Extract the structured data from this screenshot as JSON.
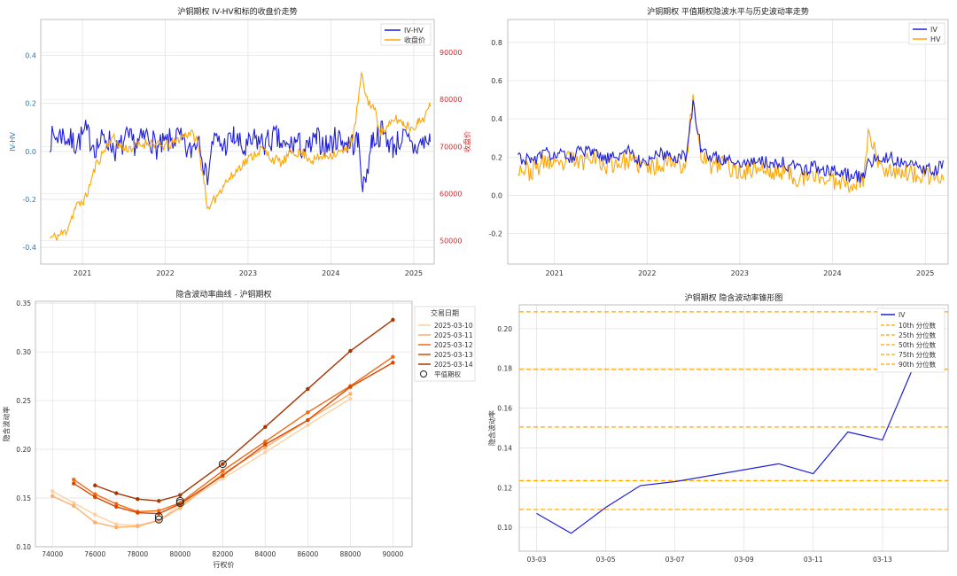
{
  "chart_data": [
    {
      "type": "line",
      "title": "沪铜期权 IV-HV和标的收盘价走势",
      "ylabel": "IV-HV",
      "ylabel_right": "收盘价",
      "xlim": [
        "2020-07-01",
        "2025-04-01"
      ],
      "ylim": [
        -0.47,
        0.55
      ],
      "ylim_right": [
        45000,
        97000
      ],
      "yticks": [
        -0.4,
        -0.2,
        0.0,
        0.2,
        0.4
      ],
      "yticks_right": [
        50000,
        60000,
        70000,
        80000,
        90000
      ],
      "xticks": [
        "2021",
        "2022",
        "2023",
        "2024",
        "2025"
      ],
      "legend": "top-right",
      "grid": true,
      "colors": {
        "iv_hv": "#1f1fdc",
        "close": "#ffa500",
        "right_axis": "#d62728"
      },
      "series": [
        {
          "name": "IV-HV",
          "axis": "left",
          "x": [
            "2020-08-10",
            "2020-10-01",
            "2020-12-01",
            "2021-01-15",
            "2021-03-01",
            "2021-04-15",
            "2021-06-01",
            "2021-07-15",
            "2021-09-01",
            "2021-10-15",
            "2021-12-01",
            "2022-01-15",
            "2022-03-01",
            "2022-04-15",
            "2022-06-01",
            "2022-07-01",
            "2022-08-01",
            "2022-09-15",
            "2022-11-01",
            "2022-12-15",
            "2023-02-01",
            "2023-03-15",
            "2023-05-01",
            "2023-06-15",
            "2023-08-01",
            "2023-09-15",
            "2023-11-01",
            "2023-12-15",
            "2024-02-01",
            "2024-03-15",
            "2024-05-01",
            "2024-05-25",
            "2024-07-01",
            "2024-08-15",
            "2024-10-01",
            "2024-11-15",
            "2025-01-01",
            "2025-02-15",
            "2025-03-14"
          ],
          "values": [
            0.05,
            0.07,
            0.03,
            0.08,
            0.02,
            0.06,
            0.0,
            0.05,
            0.03,
            0.07,
            0.01,
            0.04,
            0.06,
            -0.01,
            0.07,
            -0.12,
            0.05,
            0.02,
            0.06,
            0.0,
            0.05,
            0.03,
            0.06,
            0.01,
            0.04,
            0.0,
            0.05,
            0.02,
            0.06,
            0.03,
            0.04,
            -0.16,
            0.05,
            0.08,
            0.02,
            0.06,
            0.01,
            0.04,
            0.04
          ]
        },
        {
          "name": "收盘价",
          "axis": "right",
          "x": [
            "2020-08-10",
            "2020-09-15",
            "2020-10-20",
            "2020-12-01",
            "2021-01-15",
            "2021-03-01",
            "2021-05-10",
            "2021-07-01",
            "2021-09-01",
            "2021-10-20",
            "2021-12-15",
            "2022-02-01",
            "2022-03-10",
            "2022-04-20",
            "2022-05-20",
            "2022-06-20",
            "2022-07-10",
            "2022-08-10",
            "2022-09-15",
            "2022-10-20",
            "2022-12-01",
            "2023-01-20",
            "2023-03-01",
            "2023-04-15",
            "2023-06-01",
            "2023-07-15",
            "2023-09-01",
            "2023-10-15",
            "2023-12-01",
            "2024-01-15",
            "2024-03-01",
            "2024-04-10",
            "2024-05-15",
            "2024-06-10",
            "2024-07-10",
            "2024-08-10",
            "2024-09-10",
            "2024-10-10",
            "2024-11-15",
            "2024-12-20",
            "2025-01-20",
            "2025-02-20",
            "2025-03-14"
          ],
          "values": [
            50500,
            51000,
            52000,
            57000,
            59000,
            66000,
            72000,
            69500,
            70000,
            71000,
            70000,
            70500,
            72000,
            73000,
            71500,
            63000,
            56000,
            59000,
            62000,
            63500,
            66000,
            68000,
            69500,
            67500,
            66500,
            69000,
            68500,
            67000,
            68000,
            68500,
            69000,
            72000,
            85000,
            80000,
            78000,
            73000,
            74000,
            76000,
            75000,
            74000,
            75000,
            76500,
            78500
          ]
        }
      ]
    },
    {
      "type": "line",
      "title": "沪铜期权 平值期权隐波水平与历史波动率走势",
      "xlim": [
        "2020-07-01",
        "2025-04-01"
      ],
      "ylim": [
        -0.36,
        0.92
      ],
      "yticks": [
        -0.2,
        0.0,
        0.2,
        0.4,
        0.6,
        0.8
      ],
      "xticks": [
        "2021",
        "2022",
        "2023",
        "2024",
        "2025"
      ],
      "legend": "top-right",
      "grid": true,
      "colors": {
        "iv": "#1f1fdc",
        "hv": "#ffa500"
      },
      "series": [
        {
          "name": "IV",
          "x": [
            "2020-08-10",
            "2020-10-01",
            "2020-12-01",
            "2021-01-15",
            "2021-03-01",
            "2021-04-15",
            "2021-06-01",
            "2021-07-15",
            "2021-09-01",
            "2021-10-15",
            "2021-12-01",
            "2022-01-15",
            "2022-03-01",
            "2022-04-15",
            "2022-06-01",
            "2022-07-01",
            "2022-08-01",
            "2022-09-15",
            "2022-11-01",
            "2022-12-15",
            "2023-02-01",
            "2023-03-15",
            "2023-05-01",
            "2023-06-15",
            "2023-08-01",
            "2023-09-15",
            "2023-11-01",
            "2023-12-15",
            "2024-02-01",
            "2024-03-15",
            "2024-05-01",
            "2024-05-25",
            "2024-07-01",
            "2024-08-15",
            "2024-10-01",
            "2024-11-15",
            "2025-01-01",
            "2025-02-15",
            "2025-03-14"
          ],
          "values": [
            0.2,
            0.18,
            0.22,
            0.21,
            0.2,
            0.23,
            0.22,
            0.19,
            0.2,
            0.24,
            0.18,
            0.19,
            0.22,
            0.2,
            0.21,
            0.47,
            0.24,
            0.2,
            0.19,
            0.18,
            0.17,
            0.19,
            0.16,
            0.17,
            0.15,
            0.14,
            0.15,
            0.13,
            0.12,
            0.1,
            0.1,
            0.18,
            0.19,
            0.2,
            0.17,
            0.16,
            0.14,
            0.13,
            0.18
          ]
        },
        {
          "name": "HV",
          "x": [
            "2020-08-10",
            "2020-10-01",
            "2020-12-01",
            "2021-01-15",
            "2021-03-01",
            "2021-04-15",
            "2021-06-01",
            "2021-07-15",
            "2021-09-01",
            "2021-10-15",
            "2021-12-01",
            "2022-01-15",
            "2022-03-01",
            "2022-04-15",
            "2022-06-01",
            "2022-07-01",
            "2022-08-01",
            "2022-09-15",
            "2022-11-01",
            "2022-12-15",
            "2023-02-01",
            "2023-03-15",
            "2023-05-01",
            "2023-06-15",
            "2023-08-01",
            "2023-09-15",
            "2023-11-01",
            "2023-12-15",
            "2024-02-01",
            "2024-03-15",
            "2024-05-01",
            "2024-05-25",
            "2024-07-01",
            "2024-08-15",
            "2024-10-01",
            "2024-11-15",
            "2025-01-01",
            "2025-02-15",
            "2025-03-14"
          ],
          "values": [
            0.15,
            0.12,
            0.18,
            0.14,
            0.19,
            0.17,
            0.22,
            0.15,
            0.17,
            0.18,
            0.16,
            0.14,
            0.17,
            0.19,
            0.15,
            0.5,
            0.22,
            0.14,
            0.18,
            0.12,
            0.13,
            0.15,
            0.11,
            0.13,
            0.1,
            0.08,
            0.11,
            0.07,
            0.08,
            0.06,
            0.08,
            0.35,
            0.15,
            0.14,
            0.12,
            0.11,
            0.09,
            0.1,
            0.08
          ]
        }
      ]
    },
    {
      "type": "line",
      "title": "隐含波动率曲线 - 沪铜期权",
      "xlabel": "行权价",
      "ylabel": "隐含波动率",
      "xlim": [
        73200,
        90900
      ],
      "ylim": [
        0.1,
        0.352
      ],
      "xticks": [
        74000,
        76000,
        78000,
        80000,
        82000,
        84000,
        86000,
        88000,
        90000
      ],
      "yticks": [
        0.1,
        0.15,
        0.2,
        0.25,
        0.3,
        0.35
      ],
      "legend": "right-outside",
      "legend_title": "交易日期",
      "grid": true,
      "series": [
        {
          "name": "2025-03-10",
          "color": "#fdd0a2",
          "x": [
            74000,
            75000,
            76000,
            77000,
            78000,
            79000,
            80000,
            82000,
            84000,
            86000,
            88000
          ],
          "values": [
            0.157,
            0.145,
            0.133,
            0.123,
            0.122,
            0.127,
            0.143,
            0.17,
            0.197,
            0.225,
            0.252
          ]
        },
        {
          "name": "2025-03-11",
          "color": "#fdae6b",
          "x": [
            74000,
            75000,
            76000,
            77000,
            78000,
            79000,
            80000,
            82000,
            84000,
            86000,
            88000
          ],
          "values": [
            0.152,
            0.142,
            0.125,
            0.12,
            0.121,
            0.127,
            0.14,
            0.175,
            0.202,
            0.23,
            0.257
          ]
        },
        {
          "name": "2025-03-12",
          "color": "#f16913",
          "x": [
            75000,
            76000,
            77000,
            78000,
            79000,
            80000,
            82000,
            84000,
            86000,
            88000,
            90000
          ],
          "values": [
            0.169,
            0.154,
            0.144,
            0.136,
            0.137,
            0.145,
            0.178,
            0.208,
            0.238,
            0.265,
            0.295
          ]
        },
        {
          "name": "2025-03-13",
          "color": "#d94801",
          "x": [
            75000,
            76000,
            77000,
            78000,
            79000,
            80000,
            82000,
            84000,
            86000,
            88000,
            90000
          ],
          "values": [
            0.165,
            0.151,
            0.141,
            0.135,
            0.134,
            0.144,
            0.173,
            0.205,
            0.23,
            0.264,
            0.289
          ]
        },
        {
          "name": "2025-03-14",
          "color": "#a63603",
          "x": [
            76000,
            77000,
            78000,
            79000,
            80000,
            82000,
            84000,
            86000,
            88000,
            90000
          ],
          "values": [
            0.163,
            0.155,
            0.149,
            0.147,
            0.153,
            0.185,
            0.223,
            0.262,
            0.301,
            0.333
          ]
        }
      ],
      "atm_markers": {
        "name": "平值期权",
        "points": [
          [
            79000,
            0.128
          ],
          [
            79000,
            0.131
          ],
          [
            80000,
            0.147
          ],
          [
            80000,
            0.145
          ],
          [
            82000,
            0.185
          ]
        ]
      }
    },
    {
      "type": "line",
      "title": "沪铜期权 隐含波动率锥形图",
      "ylabel": "隐含波动率",
      "ylim": [
        0.088,
        0.212
      ],
      "yticks": [
        0.1,
        0.12,
        0.14,
        0.16,
        0.18,
        0.2
      ],
      "xticks": [
        "03-03",
        "03-05",
        "03-07",
        "03-09",
        "03-11",
        "03-13"
      ],
      "legend": "top-right",
      "grid": true,
      "colors": {
        "iv": "#1f1fdc",
        "quantile": "#ffa500"
      },
      "series": [
        {
          "name": "IV",
          "x": [
            "2025-03-03",
            "2025-03-04",
            "2025-03-05",
            "2025-03-06",
            "2025-03-07",
            "2025-03-10",
            "2025-03-11",
            "2025-03-12",
            "2025-03-13",
            "2025-03-14"
          ],
          "values": [
            0.107,
            0.097,
            0.11,
            0.121,
            0.123,
            0.132,
            0.127,
            0.148,
            0.144,
            0.185
          ]
        }
      ],
      "quantiles": [
        {
          "name": "10th 分位数",
          "value": 0.109
        },
        {
          "name": "25th 分位数",
          "value": 0.1235
        },
        {
          "name": "50th 分位数",
          "value": 0.1505
        },
        {
          "name": "75th 分位数",
          "value": 0.1795
        },
        {
          "name": "90th 分位数",
          "value": 0.2085
        }
      ]
    }
  ]
}
